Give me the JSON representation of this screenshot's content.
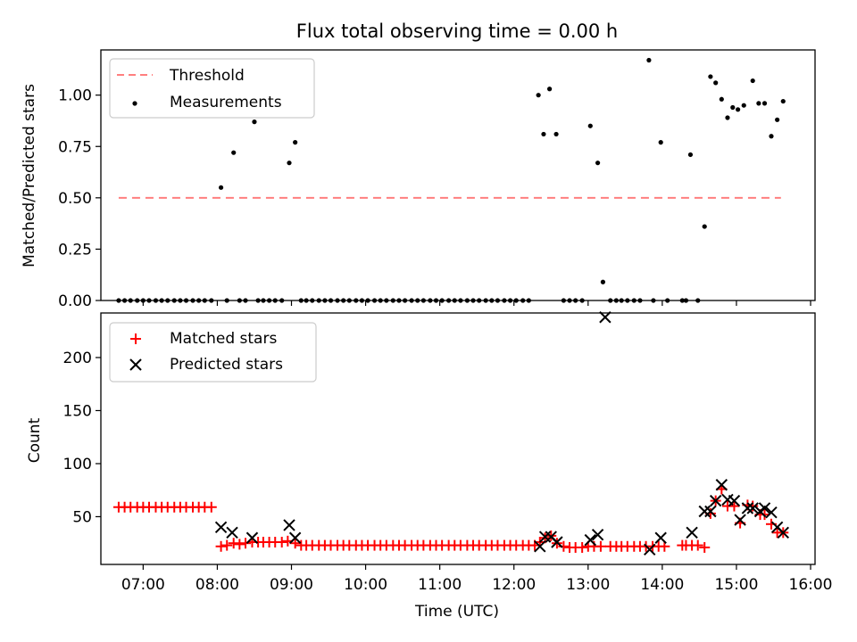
{
  "figure": {
    "title": "Flux total observing time = 0.00 h",
    "xlabel": "Time (UTC)",
    "x_ticks": [
      "07:00",
      "08:00",
      "09:00",
      "10:00",
      "11:00",
      "12:00",
      "13:00",
      "14:00",
      "15:00",
      "16:00"
    ],
    "x_tick_hours": [
      7,
      8,
      9,
      10,
      11,
      12,
      13,
      14,
      15,
      16
    ],
    "xlim_hours": [
      6.43,
      16.06
    ]
  },
  "colors": {
    "threshold": "#ff7f7f",
    "measurements": "#000000",
    "matched": "#ff0000",
    "predicted": "#000000"
  },
  "chart_data": [
    {
      "type": "scatter",
      "ylabel": "Matched/Predicted stars",
      "ylim": [
        0,
        1.22
      ],
      "y_ticks": [
        0.0,
        0.25,
        0.5,
        0.75,
        1.0
      ],
      "y_tick_labels": [
        "0.00",
        "0.25",
        "0.50",
        "0.75",
        "1.00"
      ],
      "legend_position": "top-left",
      "threshold": {
        "name": "Threshold",
        "value": 0.5,
        "x_start": 6.67,
        "x_end": 15.6
      },
      "series": [
        {
          "name": "Measurements",
          "points": [
            [
              6.67,
              0
            ],
            [
              6.75,
              0
            ],
            [
              6.83,
              0
            ],
            [
              6.92,
              0
            ],
            [
              7.0,
              0
            ],
            [
              7.08,
              0
            ],
            [
              7.17,
              0
            ],
            [
              7.25,
              0
            ],
            [
              7.33,
              0
            ],
            [
              7.42,
              0
            ],
            [
              7.5,
              0
            ],
            [
              7.58,
              0
            ],
            [
              7.67,
              0
            ],
            [
              7.75,
              0
            ],
            [
              7.83,
              0
            ],
            [
              7.92,
              0
            ],
            [
              8.05,
              0.55
            ],
            [
              8.13,
              0
            ],
            [
              8.22,
              0.72
            ],
            [
              8.3,
              0
            ],
            [
              8.38,
              0
            ],
            [
              8.5,
              0.87
            ],
            [
              8.55,
              0
            ],
            [
              8.62,
              0
            ],
            [
              8.7,
              0
            ],
            [
              8.78,
              0
            ],
            [
              8.87,
              0
            ],
            [
              8.97,
              0.67
            ],
            [
              9.05,
              0.77
            ],
            [
              9.13,
              0
            ],
            [
              9.2,
              0
            ],
            [
              9.28,
              0
            ],
            [
              9.37,
              0
            ],
            [
              9.45,
              0
            ],
            [
              9.53,
              0
            ],
            [
              9.62,
              0
            ],
            [
              9.7,
              0
            ],
            [
              9.78,
              0
            ],
            [
              9.87,
              0
            ],
            [
              9.95,
              0
            ],
            [
              10.03,
              0
            ],
            [
              10.12,
              0
            ],
            [
              10.2,
              0
            ],
            [
              10.28,
              0
            ],
            [
              10.37,
              0
            ],
            [
              10.45,
              0
            ],
            [
              10.53,
              0
            ],
            [
              10.62,
              0
            ],
            [
              10.7,
              0
            ],
            [
              10.78,
              0
            ],
            [
              10.87,
              0
            ],
            [
              10.95,
              0
            ],
            [
              11.03,
              0
            ],
            [
              11.12,
              0
            ],
            [
              11.2,
              0
            ],
            [
              11.28,
              0
            ],
            [
              11.37,
              0
            ],
            [
              11.45,
              0
            ],
            [
              11.53,
              0
            ],
            [
              11.62,
              0
            ],
            [
              11.7,
              0
            ],
            [
              11.78,
              0
            ],
            [
              11.87,
              0
            ],
            [
              11.95,
              0
            ],
            [
              12.03,
              0
            ],
            [
              12.12,
              0
            ],
            [
              12.2,
              0
            ],
            [
              12.33,
              1.0
            ],
            [
              12.4,
              0.81
            ],
            [
              12.48,
              1.03
            ],
            [
              12.57,
              0.81
            ],
            [
              12.67,
              0
            ],
            [
              12.75,
              0
            ],
            [
              12.83,
              0
            ],
            [
              12.92,
              0
            ],
            [
              13.03,
              0.85
            ],
            [
              13.13,
              0.67
            ],
            [
              13.2,
              0.09
            ],
            [
              13.3,
              0
            ],
            [
              13.38,
              0
            ],
            [
              13.45,
              0
            ],
            [
              13.53,
              0
            ],
            [
              13.62,
              0
            ],
            [
              13.7,
              0
            ],
            [
              13.82,
              1.17
            ],
            [
              13.88,
              0
            ],
            [
              13.98,
              0.77
            ],
            [
              14.07,
              0
            ],
            [
              14.27,
              0
            ],
            [
              14.32,
              0
            ],
            [
              14.38,
              0.71
            ],
            [
              14.48,
              0
            ],
            [
              14.57,
              0.36
            ],
            [
              14.65,
              1.09
            ],
            [
              14.72,
              1.06
            ],
            [
              14.8,
              0.98
            ],
            [
              14.88,
              0.89
            ],
            [
              14.95,
              0.94
            ],
            [
              15.02,
              0.93
            ],
            [
              15.1,
              0.95
            ],
            [
              15.22,
              1.07
            ],
            [
              15.3,
              0.96
            ],
            [
              15.38,
              0.96
            ],
            [
              15.47,
              0.8
            ],
            [
              15.55,
              0.88
            ],
            [
              15.63,
              0.97
            ]
          ]
        }
      ]
    },
    {
      "type": "scatter",
      "ylabel": "Count",
      "ylim": [
        5,
        242
      ],
      "y_ticks": [
        50,
        100,
        150,
        200
      ],
      "y_tick_labels": [
        "50",
        "100",
        "150",
        "200"
      ],
      "legend_position": "top-left",
      "series": [
        {
          "name": "Matched stars",
          "points": [
            [
              6.67,
              59
            ],
            [
              6.75,
              59
            ],
            [
              6.83,
              59
            ],
            [
              6.92,
              59
            ],
            [
              7.0,
              59
            ],
            [
              7.08,
              59
            ],
            [
              7.17,
              59
            ],
            [
              7.25,
              59
            ],
            [
              7.33,
              59
            ],
            [
              7.42,
              59
            ],
            [
              7.5,
              59
            ],
            [
              7.58,
              59
            ],
            [
              7.67,
              59
            ],
            [
              7.75,
              59
            ],
            [
              7.83,
              59
            ],
            [
              7.92,
              59
            ],
            [
              8.05,
              22
            ],
            [
              8.13,
              23
            ],
            [
              8.22,
              25
            ],
            [
              8.3,
              24
            ],
            [
              8.38,
              25
            ],
            [
              8.47,
              26
            ],
            [
              8.55,
              26
            ],
            [
              8.62,
              26
            ],
            [
              8.7,
              26
            ],
            [
              8.78,
              26
            ],
            [
              8.87,
              26
            ],
            [
              8.95,
              27
            ],
            [
              9.05,
              25
            ],
            [
              9.13,
              23
            ],
            [
              9.2,
              23
            ],
            [
              9.28,
              23
            ],
            [
              9.37,
              23
            ],
            [
              9.45,
              23
            ],
            [
              9.53,
              23
            ],
            [
              9.62,
              23
            ],
            [
              9.7,
              23
            ],
            [
              9.78,
              23
            ],
            [
              9.87,
              23
            ],
            [
              9.95,
              23
            ],
            [
              10.03,
              23
            ],
            [
              10.12,
              23
            ],
            [
              10.2,
              23
            ],
            [
              10.28,
              23
            ],
            [
              10.37,
              23
            ],
            [
              10.45,
              23
            ],
            [
              10.53,
              23
            ],
            [
              10.62,
              23
            ],
            [
              10.7,
              23
            ],
            [
              10.78,
              23
            ],
            [
              10.87,
              23
            ],
            [
              10.95,
              23
            ],
            [
              11.03,
              23
            ],
            [
              11.12,
              23
            ],
            [
              11.2,
              23
            ],
            [
              11.28,
              23
            ],
            [
              11.37,
              23
            ],
            [
              11.45,
              23
            ],
            [
              11.53,
              23
            ],
            [
              11.62,
              23
            ],
            [
              11.7,
              23
            ],
            [
              11.78,
              23
            ],
            [
              11.87,
              23
            ],
            [
              11.95,
              23
            ],
            [
              12.03,
              23
            ],
            [
              12.12,
              23
            ],
            [
              12.2,
              23
            ],
            [
              12.28,
              23
            ],
            [
              12.35,
              26
            ],
            [
              12.42,
              30
            ],
            [
              12.5,
              32
            ],
            [
              12.58,
              25
            ],
            [
              12.67,
              22
            ],
            [
              12.75,
              21
            ],
            [
              12.83,
              21
            ],
            [
              12.92,
              21
            ],
            [
              13.0,
              22
            ],
            [
              13.08,
              22
            ],
            [
              13.17,
              22
            ],
            [
              13.3,
              22
            ],
            [
              13.38,
              22
            ],
            [
              13.45,
              22
            ],
            [
              13.53,
              22
            ],
            [
              13.62,
              22
            ],
            [
              13.7,
              22
            ],
            [
              13.78,
              22
            ],
            [
              13.87,
              22
            ],
            [
              13.95,
              22
            ],
            [
              14.03,
              22
            ],
            [
              14.27,
              23
            ],
            [
              14.32,
              23
            ],
            [
              14.4,
              23
            ],
            [
              14.48,
              23
            ],
            [
              14.57,
              21
            ],
            [
              14.65,
              53
            ],
            [
              14.72,
              65
            ],
            [
              14.8,
              76
            ],
            [
              14.88,
              60
            ],
            [
              14.97,
              60
            ],
            [
              15.05,
              44
            ],
            [
              15.15,
              61
            ],
            [
              15.22,
              60
            ],
            [
              15.32,
              52
            ],
            [
              15.38,
              52
            ],
            [
              15.47,
              43
            ],
            [
              15.55,
              35
            ],
            [
              15.63,
              35
            ]
          ]
        },
        {
          "name": "Predicted stars",
          "points": [
            [
              8.05,
              40
            ],
            [
              8.2,
              35
            ],
            [
              8.47,
              30
            ],
            [
              8.97,
              42
            ],
            [
              9.05,
              30
            ],
            [
              12.35,
              22
            ],
            [
              12.42,
              31
            ],
            [
              12.5,
              31
            ],
            [
              12.58,
              26
            ],
            [
              13.03,
              28
            ],
            [
              13.13,
              33
            ],
            [
              13.23,
              238
            ],
            [
              13.83,
              19
            ],
            [
              13.98,
              30
            ],
            [
              14.4,
              35
            ],
            [
              14.57,
              55
            ],
            [
              14.65,
              55
            ],
            [
              14.72,
              65
            ],
            [
              14.8,
              80
            ],
            [
              14.88,
              66
            ],
            [
              14.97,
              65
            ],
            [
              15.05,
              47
            ],
            [
              15.15,
              58
            ],
            [
              15.22,
              58
            ],
            [
              15.32,
              55
            ],
            [
              15.38,
              58
            ],
            [
              15.47,
              54
            ],
            [
              15.55,
              40
            ],
            [
              15.63,
              35
            ]
          ]
        }
      ]
    }
  ]
}
